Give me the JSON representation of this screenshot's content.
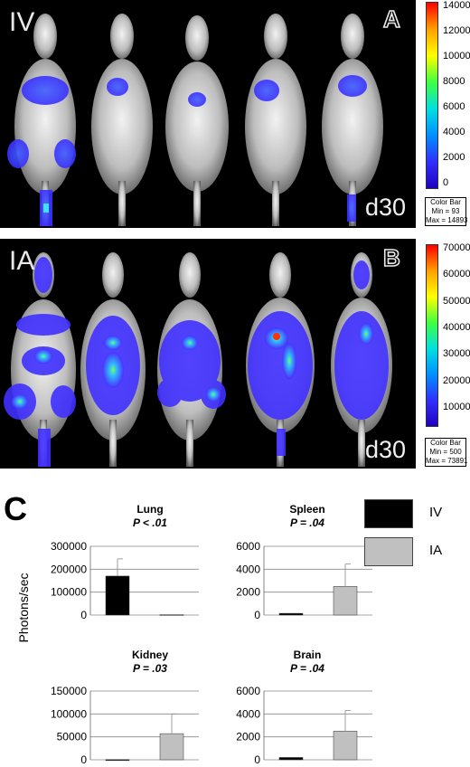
{
  "panels": [
    {
      "label": "IV",
      "letter": "A",
      "day": "d30",
      "colorbar": {
        "ticks": [
          "14000",
          "12000",
          "10000",
          "8000",
          "6000",
          "4000",
          "2000",
          "0"
        ],
        "info": [
          "Color Bar",
          "Min = 93",
          "Max = 14893"
        ]
      }
    },
    {
      "label": "IA",
      "letter": "B",
      "day": "d30",
      "colorbar": {
        "ticks": [
          "70000",
          "60000",
          "50000",
          "40000",
          "30000",
          "20000",
          "10000"
        ],
        "info": [
          "Color Bar",
          "Min = 500",
          "Max = 73891"
        ]
      }
    }
  ],
  "section_c": {
    "letter": "C",
    "ylabel": "Photons/sec",
    "legend": [
      {
        "name": "IV",
        "color": "#000000"
      },
      {
        "name": "IA",
        "color": "#c0c0c0"
      }
    ]
  },
  "chart_data": [
    {
      "type": "bar",
      "title": "Lung",
      "p": "P < .01",
      "categories": [
        "IV",
        "IA"
      ],
      "values": [
        170000,
        2000
      ],
      "errors": [
        75000,
        0
      ],
      "ylim": [
        0,
        300000
      ],
      "ticks": [
        "0",
        "100000",
        "200000",
        "300000"
      ]
    },
    {
      "type": "bar",
      "title": "Spleen",
      "p": "P = .04",
      "categories": [
        "IV",
        "IA"
      ],
      "values": [
        150,
        2500
      ],
      "errors": [
        0,
        1950
      ],
      "ylim": [
        0,
        6000
      ],
      "ticks": [
        "0",
        "2000",
        "4000",
        "6000"
      ]
    },
    {
      "type": "bar",
      "title": "Kidney",
      "p": "P = .03",
      "categories": [
        "IV",
        "IA"
      ],
      "values": [
        300,
        57000
      ],
      "errors": [
        0,
        43000
      ],
      "ylim": [
        0,
        150000
      ],
      "ticks": [
        "0",
        "50000",
        "100000",
        "150000"
      ]
    },
    {
      "type": "bar",
      "title": "Brain",
      "p": "P = .04",
      "categories": [
        "IV",
        "IA"
      ],
      "values": [
        200,
        2500
      ],
      "errors": [
        0,
        1800
      ],
      "ylim": [
        0,
        6000
      ],
      "ticks": [
        "0",
        "2000",
        "4000",
        "6000"
      ]
    }
  ]
}
